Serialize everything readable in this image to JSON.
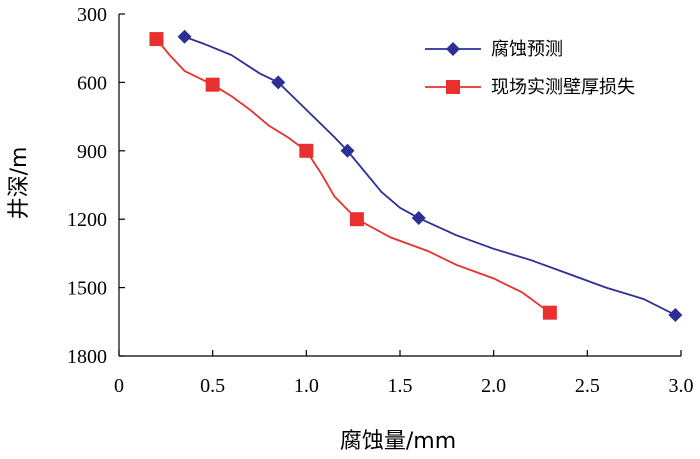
{
  "chart_data": {
    "type": "line",
    "xlabel": "腐蚀量/mm",
    "ylabel": "井深/m",
    "xlim": [
      0,
      3.0
    ],
    "ylim": [
      300,
      1800
    ],
    "y_inverted": true,
    "xticks": [
      0,
      0.5,
      1.0,
      1.5,
      2.0,
      2.5,
      3.0
    ],
    "xtick_labels": [
      "0",
      "0.5",
      "1.0",
      "1.5",
      "2.0",
      "2.5",
      "3.0"
    ],
    "yticks": [
      300,
      600,
      900,
      1200,
      1500,
      1800
    ],
    "ytick_labels": [
      "300",
      "600",
      "900",
      "1200",
      "1500",
      "1800"
    ],
    "legend_position": "top-right",
    "grid": false,
    "series": [
      {
        "name": "腐蚀预测",
        "color": "#2b2f96",
        "marker": "diamond",
        "curve": [
          [
            0.35,
            400
          ],
          [
            0.45,
            430
          ],
          [
            0.6,
            480
          ],
          [
            0.75,
            560
          ],
          [
            0.85,
            600
          ],
          [
            0.95,
            680
          ],
          [
            1.05,
            760
          ],
          [
            1.15,
            840
          ],
          [
            1.22,
            900
          ],
          [
            1.3,
            980
          ],
          [
            1.4,
            1080
          ],
          [
            1.5,
            1150
          ],
          [
            1.6,
            1195
          ],
          [
            1.8,
            1270
          ],
          [
            2.0,
            1330
          ],
          [
            2.2,
            1380
          ],
          [
            2.4,
            1440
          ],
          [
            2.6,
            1500
          ],
          [
            2.8,
            1550
          ],
          [
            2.97,
            1620
          ]
        ],
        "markers": [
          [
            0.35,
            400
          ],
          [
            0.85,
            600
          ],
          [
            1.22,
            900
          ],
          [
            1.6,
            1195
          ],
          [
            2.97,
            1620
          ]
        ]
      },
      {
        "name": "现场实测壁厚损失",
        "color": "#e8312e",
        "marker": "square",
        "curve": [
          [
            0.2,
            410
          ],
          [
            0.27,
            480
          ],
          [
            0.35,
            550
          ],
          [
            0.5,
            610
          ],
          [
            0.6,
            660
          ],
          [
            0.7,
            720
          ],
          [
            0.8,
            790
          ],
          [
            0.9,
            840
          ],
          [
            1.0,
            900
          ],
          [
            1.08,
            1000
          ],
          [
            1.15,
            1100
          ],
          [
            1.27,
            1200
          ],
          [
            1.45,
            1280
          ],
          [
            1.65,
            1340
          ],
          [
            1.8,
            1400
          ],
          [
            2.0,
            1460
          ],
          [
            2.15,
            1520
          ],
          [
            2.3,
            1610
          ]
        ],
        "markers": [
          [
            0.2,
            410
          ],
          [
            0.5,
            610
          ],
          [
            1.0,
            900
          ],
          [
            1.27,
            1200
          ],
          [
            2.3,
            1610
          ]
        ]
      }
    ]
  }
}
